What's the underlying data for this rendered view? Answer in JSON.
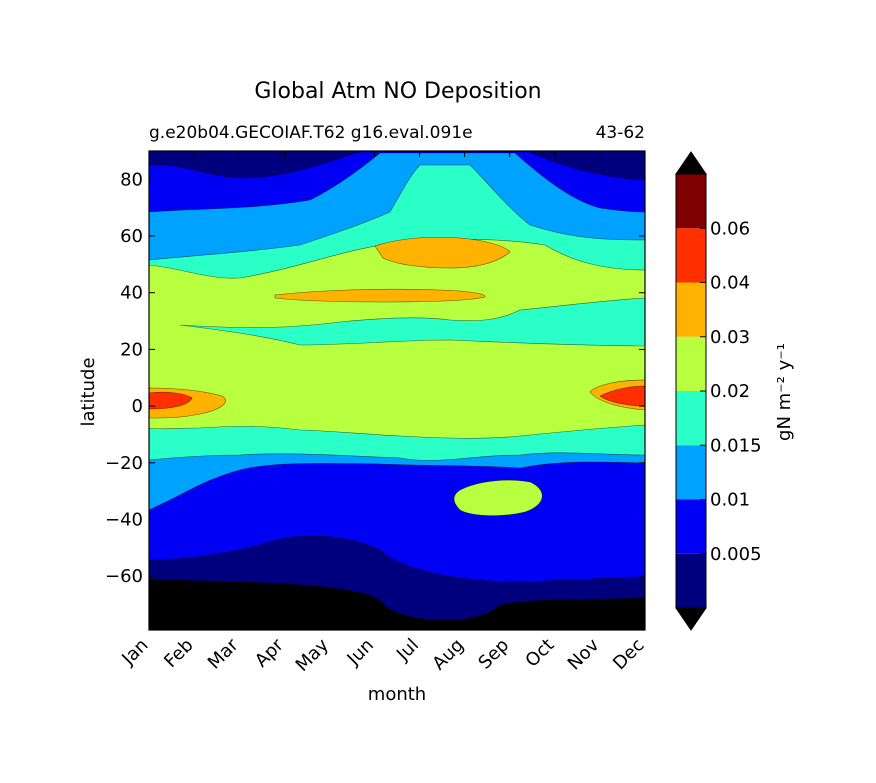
{
  "chart_data": {
    "type": "heatmap",
    "title": "Global Atm NO Deposition",
    "subtitle_left": "g.e20b04.GECOIAF.T62 g16.eval.091e",
    "subtitle_right": "43-62",
    "xlabel": "month",
    "ylabel": "latitude",
    "colorbar_label": "gN m⁻² y⁻¹",
    "x_ticks": [
      "Jan",
      "Feb",
      "Mar",
      "Apr",
      "May",
      "Jun",
      "Jul",
      "Aug",
      "Sep",
      "Oct",
      "Nov",
      "Dec"
    ],
    "y_ticks": [
      80,
      60,
      40,
      20,
      0,
      -20,
      -40,
      -60
    ],
    "y_tick_labels": [
      "80",
      "60",
      "40",
      "20",
      "0",
      "−20",
      "−40",
      "−60"
    ],
    "ylim": [
      -79,
      90
    ],
    "colorbar_levels": [
      0,
      0.005,
      0.01,
      0.015,
      0.02,
      0.03,
      0.04,
      0.06,
      0.07
    ],
    "colorbar_tick_values": [
      0.005,
      0.01,
      0.015,
      0.02,
      0.03,
      0.04,
      0.06
    ],
    "colorbar_tick_labels": [
      "0.005",
      "0.01",
      "0.015",
      "0.02",
      "0.03",
      "0.04",
      "0.06"
    ],
    "colorbar_colors": [
      "#00007f",
      "#0000f5",
      "#00a2ff",
      "#2affc8",
      "#b7ff3f",
      "#ffb200",
      "#ff2f00",
      "#7f0000"
    ],
    "under_color": "#000000",
    "over_color": "#000000",
    "latitude_profile": [
      {
        "lat": 85,
        "value": 0.002
      },
      {
        "lat": 75,
        "value": 0.004
      },
      {
        "lat": 65,
        "value": 0.012
      },
      {
        "lat": 50,
        "value": 0.022
      },
      {
        "lat": 40,
        "value": 0.025
      },
      {
        "lat": 30,
        "value": 0.022
      },
      {
        "lat": 20,
        "value": 0.02
      },
      {
        "lat": 10,
        "value": 0.02
      },
      {
        "lat": 0,
        "value": 0.018
      },
      {
        "lat": -10,
        "value": 0.017
      },
      {
        "lat": -20,
        "value": 0.011
      },
      {
        "lat": -40,
        "value": 0.007
      },
      {
        "lat": -55,
        "value": 0.004
      },
      {
        "lat": -70,
        "value": 0.0005
      }
    ]
  }
}
